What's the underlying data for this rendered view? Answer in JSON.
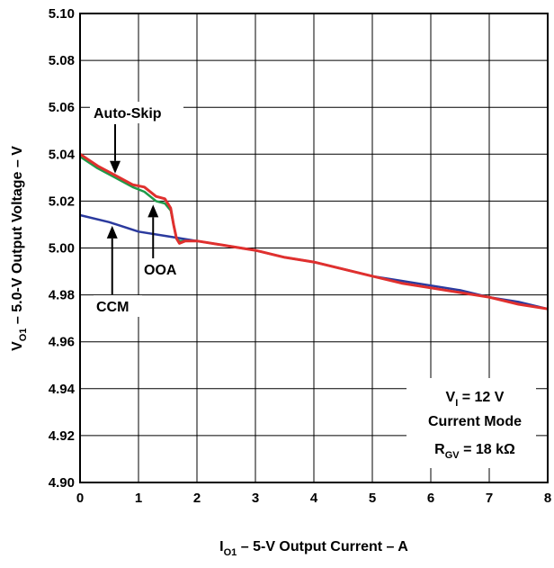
{
  "chart_data": {
    "type": "line",
    "xlabel": {
      "main": "I",
      "sub": "O1",
      "rest": " – 5-V Output Current –  A"
    },
    "ylabel": {
      "main": "V",
      "sub": "O1",
      "rest": " – 5.0-V Output Voltage – V"
    },
    "xlim": [
      0,
      8
    ],
    "ylim": [
      4.9,
      5.1
    ],
    "x_ticks": [
      "0",
      "1",
      "2",
      "3",
      "4",
      "5",
      "6",
      "7",
      "8"
    ],
    "y_ticks": [
      "4.90",
      "4.92",
      "4.94",
      "4.96",
      "4.98",
      "5.00",
      "5.02",
      "5.04",
      "5.06",
      "5.08",
      "5.10"
    ],
    "grid": true,
    "series": [
      {
        "color": "#2b3a9e",
        "x": [
          0,
          0.5,
          1.0,
          1.5,
          2.0,
          2.5,
          3.0,
          3.5,
          4.0,
          4.5,
          5.0,
          5.5,
          6.0,
          6.5,
          7.0,
          7.5,
          8.0
        ],
        "y": [
          5.014,
          5.011,
          5.007,
          5.005,
          5.003,
          5.001,
          4.999,
          4.996,
          4.994,
          4.991,
          4.988,
          4.986,
          4.984,
          4.982,
          4.979,
          4.977,
          4.974
        ]
      },
      {
        "color": "#1f9a4a",
        "x": [
          0,
          0.3,
          0.6,
          0.9,
          1.1,
          1.3,
          1.45,
          1.55,
          1.6,
          1.65,
          1.7,
          1.8,
          2.0
        ],
        "y": [
          5.039,
          5.034,
          5.03,
          5.026,
          5.024,
          5.02,
          5.019,
          5.016,
          5.01,
          5.004,
          5.003,
          5.003,
          5.003
        ]
      },
      {
        "color": "#e0302e",
        "x": [
          0,
          0.3,
          0.6,
          0.9,
          1.1,
          1.3,
          1.45,
          1.55,
          1.6,
          1.65,
          1.7,
          1.8,
          2.0,
          2.5,
          3.0,
          3.5,
          4.0,
          4.5,
          5.0,
          5.5,
          6.0,
          6.5,
          7.0,
          7.5,
          8.0
        ],
        "y": [
          5.04,
          5.035,
          5.031,
          5.027,
          5.026,
          5.022,
          5.021,
          5.017,
          5.01,
          5.004,
          5.002,
          5.003,
          5.003,
          5.001,
          4.999,
          4.996,
          4.994,
          4.991,
          4.988,
          4.985,
          4.983,
          4.981,
          4.979,
          4.976,
          4.974
        ]
      }
    ],
    "annotations": [
      {
        "id": "auto-skip",
        "text": "Auto-Skip",
        "arrow_x": 0.6,
        "arrow_y": 5.031
      },
      {
        "id": "ooa",
        "text": "OOA",
        "arrow_x": 1.25,
        "arrow_y": 5.02
      },
      {
        "id": "ccm",
        "text": "CCM",
        "arrow_x": 0.55,
        "arrow_y": 5.011
      }
    ],
    "conditions": {
      "line1": {
        "main": "V",
        "sub": "I",
        "rest": " = 12 V"
      },
      "line2": "Current Mode",
      "line3": {
        "main": "R",
        "sub": "GV",
        "rest": " = 18 kΩ"
      }
    }
  }
}
